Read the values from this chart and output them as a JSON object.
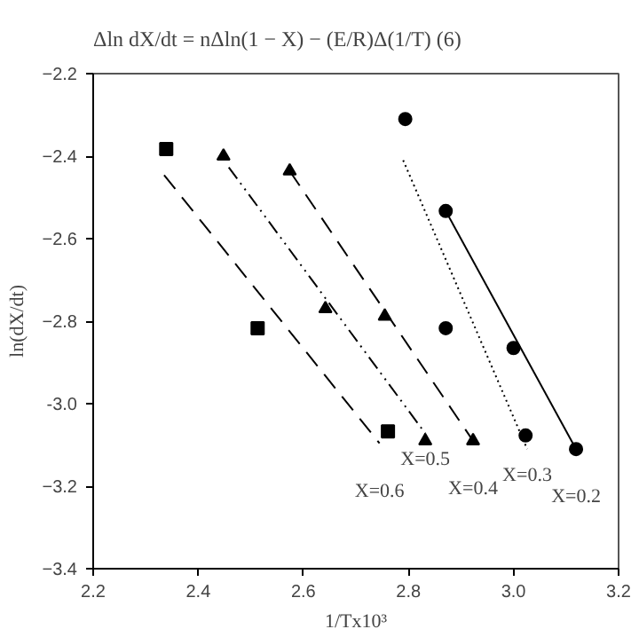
{
  "chart_data": {
    "type": "scatter",
    "xlabel": "1/Tx10³",
    "ylabel": "ln(dX/dt)",
    "xlim": [
      2.2,
      3.2
    ],
    "ylim": [
      -3.4,
      -2.2
    ],
    "xticks": [
      2.2,
      2.4,
      2.6,
      2.8,
      {
        "value": 3.0,
        "label": "3.0"
      },
      3.2
    ],
    "yticks": [
      -2.2,
      -2.4,
      -2.6,
      -2.8,
      {
        "value": -3.0,
        "label": "-3.0"
      },
      -3.2,
      -3.4
    ],
    "grid": false,
    "series": [
      {
        "color": "#000000",
        "marker": "square",
        "x": [
          2.339,
          2.513,
          2.761
        ],
        "values": [
          -2.383,
          -2.817,
          -3.067
        ]
      },
      {
        "color": "#000000",
        "marker": "triangle",
        "x": [
          2.448,
          2.642,
          2.832
        ],
        "values": [
          -2.4,
          -2.77,
          -3.09
        ]
      },
      {
        "color": "#000000",
        "marker": "triangle",
        "x": [
          2.574,
          2.755,
          2.923
        ],
        "values": [
          -2.436,
          -2.788,
          -3.09
        ]
      },
      {
        "color": "#000000",
        "marker": "circle",
        "x": [
          2.794,
          2.871,
          3.023
        ],
        "values": [
          -2.31,
          -2.817,
          -3.077
        ]
      },
      {
        "color": "#000000",
        "marker": "circle",
        "x": [
          2.871,
          3.0,
          3.119
        ],
        "values": [
          -2.533,
          -2.865,
          -3.11
        ]
      },
      {
        "type": "line",
        "name": "X=0.6",
        "color": "#000000",
        "line_style": "dashed",
        "x": [
          2.335,
          2.745
        ],
        "values": [
          -2.446,
          -3.096
        ]
      },
      {
        "type": "line",
        "name": "X=0.5",
        "color": "#000000",
        "line_style": "dashdot",
        "x": [
          2.458,
          2.832
        ],
        "values": [
          -2.427,
          -3.072
        ]
      },
      {
        "type": "line",
        "name": "X=0.4",
        "color": "#000000",
        "line_style": "dashed",
        "x": [
          2.574,
          2.923
        ],
        "values": [
          -2.436,
          -3.09
        ]
      },
      {
        "type": "line",
        "name": "X=0.3",
        "color": "#000000",
        "line_style": "dotted",
        "x": [
          2.79,
          3.026
        ],
        "values": [
          -2.41,
          -3.11
        ]
      },
      {
        "type": "line",
        "name": "X=0.2",
        "color": "#000000",
        "line_style": "solid",
        "x": [
          2.871,
          3.119
        ],
        "values": [
          -2.533,
          -3.11
        ]
      }
    ],
    "annotations": [
      "Δln dX/dt = nΔln(1 − X) − (E/R)Δ(1/T)          (6)"
    ]
  }
}
